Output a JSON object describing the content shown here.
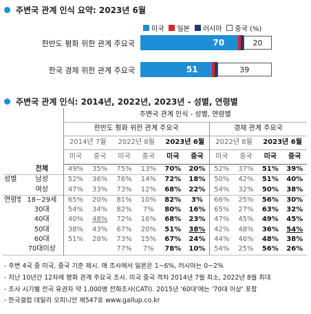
{
  "section1": {
    "title": "주변국 관계 인식 요약: 2023년 6월"
  },
  "legend": [
    {
      "label": "미국",
      "color": "#1e8fd6"
    },
    {
      "label": "일본",
      "color": "#d9252a"
    },
    {
      "label": "러시아",
      "color": "#1f3a6e"
    },
    {
      "label": "중국 (%)",
      "color": "#ffffff"
    }
  ],
  "section2": {
    "title": "주변국 관계 인식: 2014년, 2022년, 2023년 - 성별, 연령별"
  },
  "chart_data": [
    {
      "type": "bar",
      "stacked": true,
      "orientation": "horizontal",
      "categories": [
        "한반도 평화 위한 관계 주요국",
        "한국 경제 위한 관계 주요국"
      ],
      "series": [
        {
          "name": "미국",
          "values": [
            70,
            51
          ],
          "show_label": true
        },
        {
          "name": "일본",
          "values": [
            2,
            2
          ],
          "show_label": false
        },
        {
          "name": "러시아",
          "values": [
            2,
            2
          ],
          "show_label": false
        },
        {
          "name": "중국",
          "values": [
            20,
            39
          ],
          "show_label": true
        }
      ],
      "xlim": [
        0,
        100
      ]
    },
    {
      "type": "table",
      "title": "주변국 관계 인식 - 성별, 연령별",
      "groups": [
        {
          "label": "한반도 평화 위한 관계 주요국",
          "years": [
            "2014년 7월",
            "2022년 8월",
            "2023년 6월"
          ]
        },
        {
          "label": "경제 관계 주요국",
          "years": [
            "2022년 8월",
            "2023년 6월"
          ]
        }
      ],
      "sub_headers": [
        "미국",
        "중국",
        "미국",
        "중국",
        "미국",
        "중국",
        "미국",
        "중국",
        "미국",
        "중국"
      ],
      "rows": [
        {
          "group": "",
          "label": "전체",
          "values": [
            "49%",
            "35%",
            "75%",
            "13%",
            "70%",
            "20%",
            "52%",
            "37%",
            "51%",
            "39%"
          ]
        },
        {
          "group": "성별",
          "label": "남성",
          "values": [
            "52%",
            "36%",
            "76%",
            "14%",
            "72%",
            "18%",
            "50%",
            "42%",
            "51%",
            "40%"
          ]
        },
        {
          "group": "",
          "label": "여성",
          "values": [
            "47%",
            "33%",
            "73%",
            "12%",
            "68%",
            "22%",
            "54%",
            "32%",
            "50%",
            "38%"
          ]
        },
        {
          "group": "연령별",
          "label": "18~29세",
          "values": [
            "65%",
            "20%",
            "81%",
            "10%",
            "82%",
            "3%",
            "66%",
            "25%",
            "56%",
            "30%"
          ]
        },
        {
          "group": "",
          "label": "30대",
          "values": [
            "54%",
            "34%",
            "82%",
            "7%",
            "80%",
            "16%",
            "65%",
            "27%",
            "63%",
            "32%"
          ]
        },
        {
          "group": "",
          "label": "40대",
          "values": [
            "40%",
            "48%",
            "72%",
            "16%",
            "68%",
            "23%",
            "47%",
            "45%",
            "49%",
            "45%"
          ]
        },
        {
          "group": "",
          "label": "50대",
          "values": [
            "38%",
            "43%",
            "67%",
            "20%",
            "51%",
            "38%",
            "42%",
            "48%",
            "36%",
            "54%"
          ]
        },
        {
          "group": "",
          "label": "60대",
          "values": [
            "51%",
            "28%",
            "73%",
            "15%",
            "67%",
            "24%",
            "44%",
            "46%",
            "48%",
            "38%"
          ]
        },
        {
          "group": "",
          "label": "70대이상",
          "values": [
            "",
            "",
            "77%",
            "7%",
            "78%",
            "10%",
            "54%",
            "25%",
            "56%",
            "26%"
          ]
        }
      ],
      "underlined": [
        [
          5,
          1
        ],
        [
          6,
          5
        ],
        [
          6,
          9
        ]
      ]
    }
  ],
  "notes": [
    "- 주변 4국 중 미국, 중국 기준 제시. 매 조사에서 일본은 1~6%, 러시아는 0~2%",
    "- 지난 10년간 12차례 평화 관계 주요국 조사. 미국 중국 격차 2014년 7월 최소, 2022년 8월 최대",
    "- 조사 시기별 전국 유권자 약 1,000명 전화조사(CATI). 2015년 '60대'에는 '70대 이상' 포함",
    "- 한국갤럽 데일리 오피니언 제547호 www.gallup.co.kr"
  ]
}
